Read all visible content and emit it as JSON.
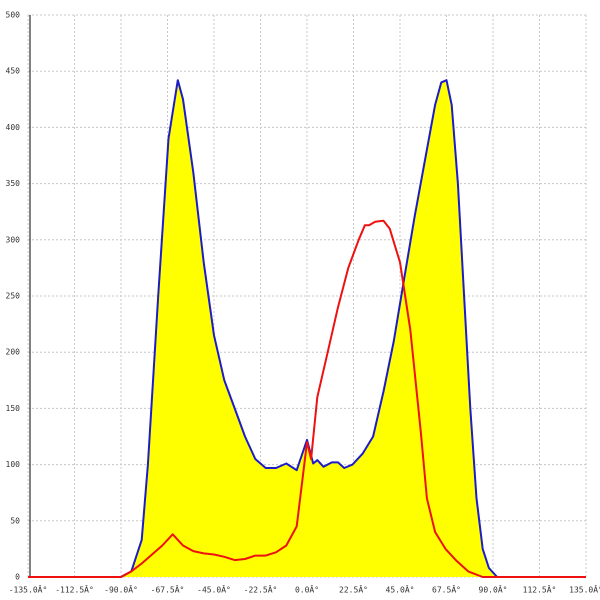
{
  "chart_data": {
    "type": "area-line",
    "xlim": [
      -135,
      135
    ],
    "ylim": [
      0,
      500
    ],
    "xticks": [
      {
        "value": -135,
        "label": "-135.0Â°"
      },
      {
        "value": -112.5,
        "label": "-112.5Â°"
      },
      {
        "value": -90,
        "label": "-90.0Â°"
      },
      {
        "value": -67.5,
        "label": "-67.5Â°"
      },
      {
        "value": -45,
        "label": "-45.0Â°"
      },
      {
        "value": -22.5,
        "label": "-22.5Â°"
      },
      {
        "value": 0,
        "label": "0.0Â°"
      },
      {
        "value": 22.5,
        "label": "22.5Â°"
      },
      {
        "value": 45,
        "label": "45.0Â°"
      },
      {
        "value": 67.5,
        "label": "67.5Â°"
      },
      {
        "value": 90,
        "label": "90.0Â°"
      },
      {
        "value": 112.5,
        "label": "112.5Â°"
      },
      {
        "value": 135,
        "label": "135.0Â°"
      }
    ],
    "yticks": [
      0,
      50,
      100,
      150,
      200,
      250,
      300,
      350,
      400,
      450,
      500
    ],
    "grid": true,
    "series": [
      {
        "color": "#1c1cc8",
        "fill": "#ffff00",
        "x": [
          -135,
          -90,
          -85,
          -80,
          -77,
          -72,
          -67,
          -62.5,
          -60,
          -55,
          -50,
          -45,
          -40,
          -35,
          -30,
          -25,
          -20,
          -15,
          -10,
          -5,
          0,
          3,
          5,
          8,
          12,
          15,
          18,
          22,
          27,
          32,
          37,
          42,
          47,
          52,
          57,
          62,
          65,
          67.5,
          70,
          73,
          76,
          79,
          82,
          85,
          88,
          92,
          135
        ],
        "values": [
          0,
          0,
          5,
          33,
          100,
          250,
          390,
          442,
          425,
          360,
          280,
          215,
          175,
          150,
          125,
          105,
          97,
          97,
          101,
          95,
          122,
          101,
          104,
          98,
          102,
          102,
          97,
          100,
          110,
          125,
          165,
          210,
          265,
          320,
          370,
          420,
          440,
          442,
          420,
          350,
          250,
          150,
          70,
          25,
          8,
          0,
          0
        ]
      },
      {
        "color": "#ee1111",
        "x": [
          -135,
          -90,
          -85,
          -80,
          -75,
          -70,
          -65,
          -60,
          -55,
          -50,
          -45,
          -40,
          -35,
          -30,
          -25,
          -20,
          -15,
          -10,
          -5,
          -2,
          0,
          2,
          5,
          10,
          15,
          20,
          25,
          28,
          30,
          33,
          37,
          40,
          45,
          50,
          55,
          58,
          62,
          67,
          72,
          78,
          85,
          135
        ],
        "values": [
          0,
          0,
          5,
          12,
          20,
          28,
          38,
          28,
          23,
          21,
          20,
          18,
          15,
          16,
          19,
          19,
          22,
          28,
          45,
          90,
          120,
          105,
          160,
          200,
          240,
          275,
          300,
          313,
          313,
          316,
          317,
          310,
          280,
          220,
          130,
          70,
          40,
          25,
          15,
          5,
          0,
          0
        ]
      }
    ]
  }
}
